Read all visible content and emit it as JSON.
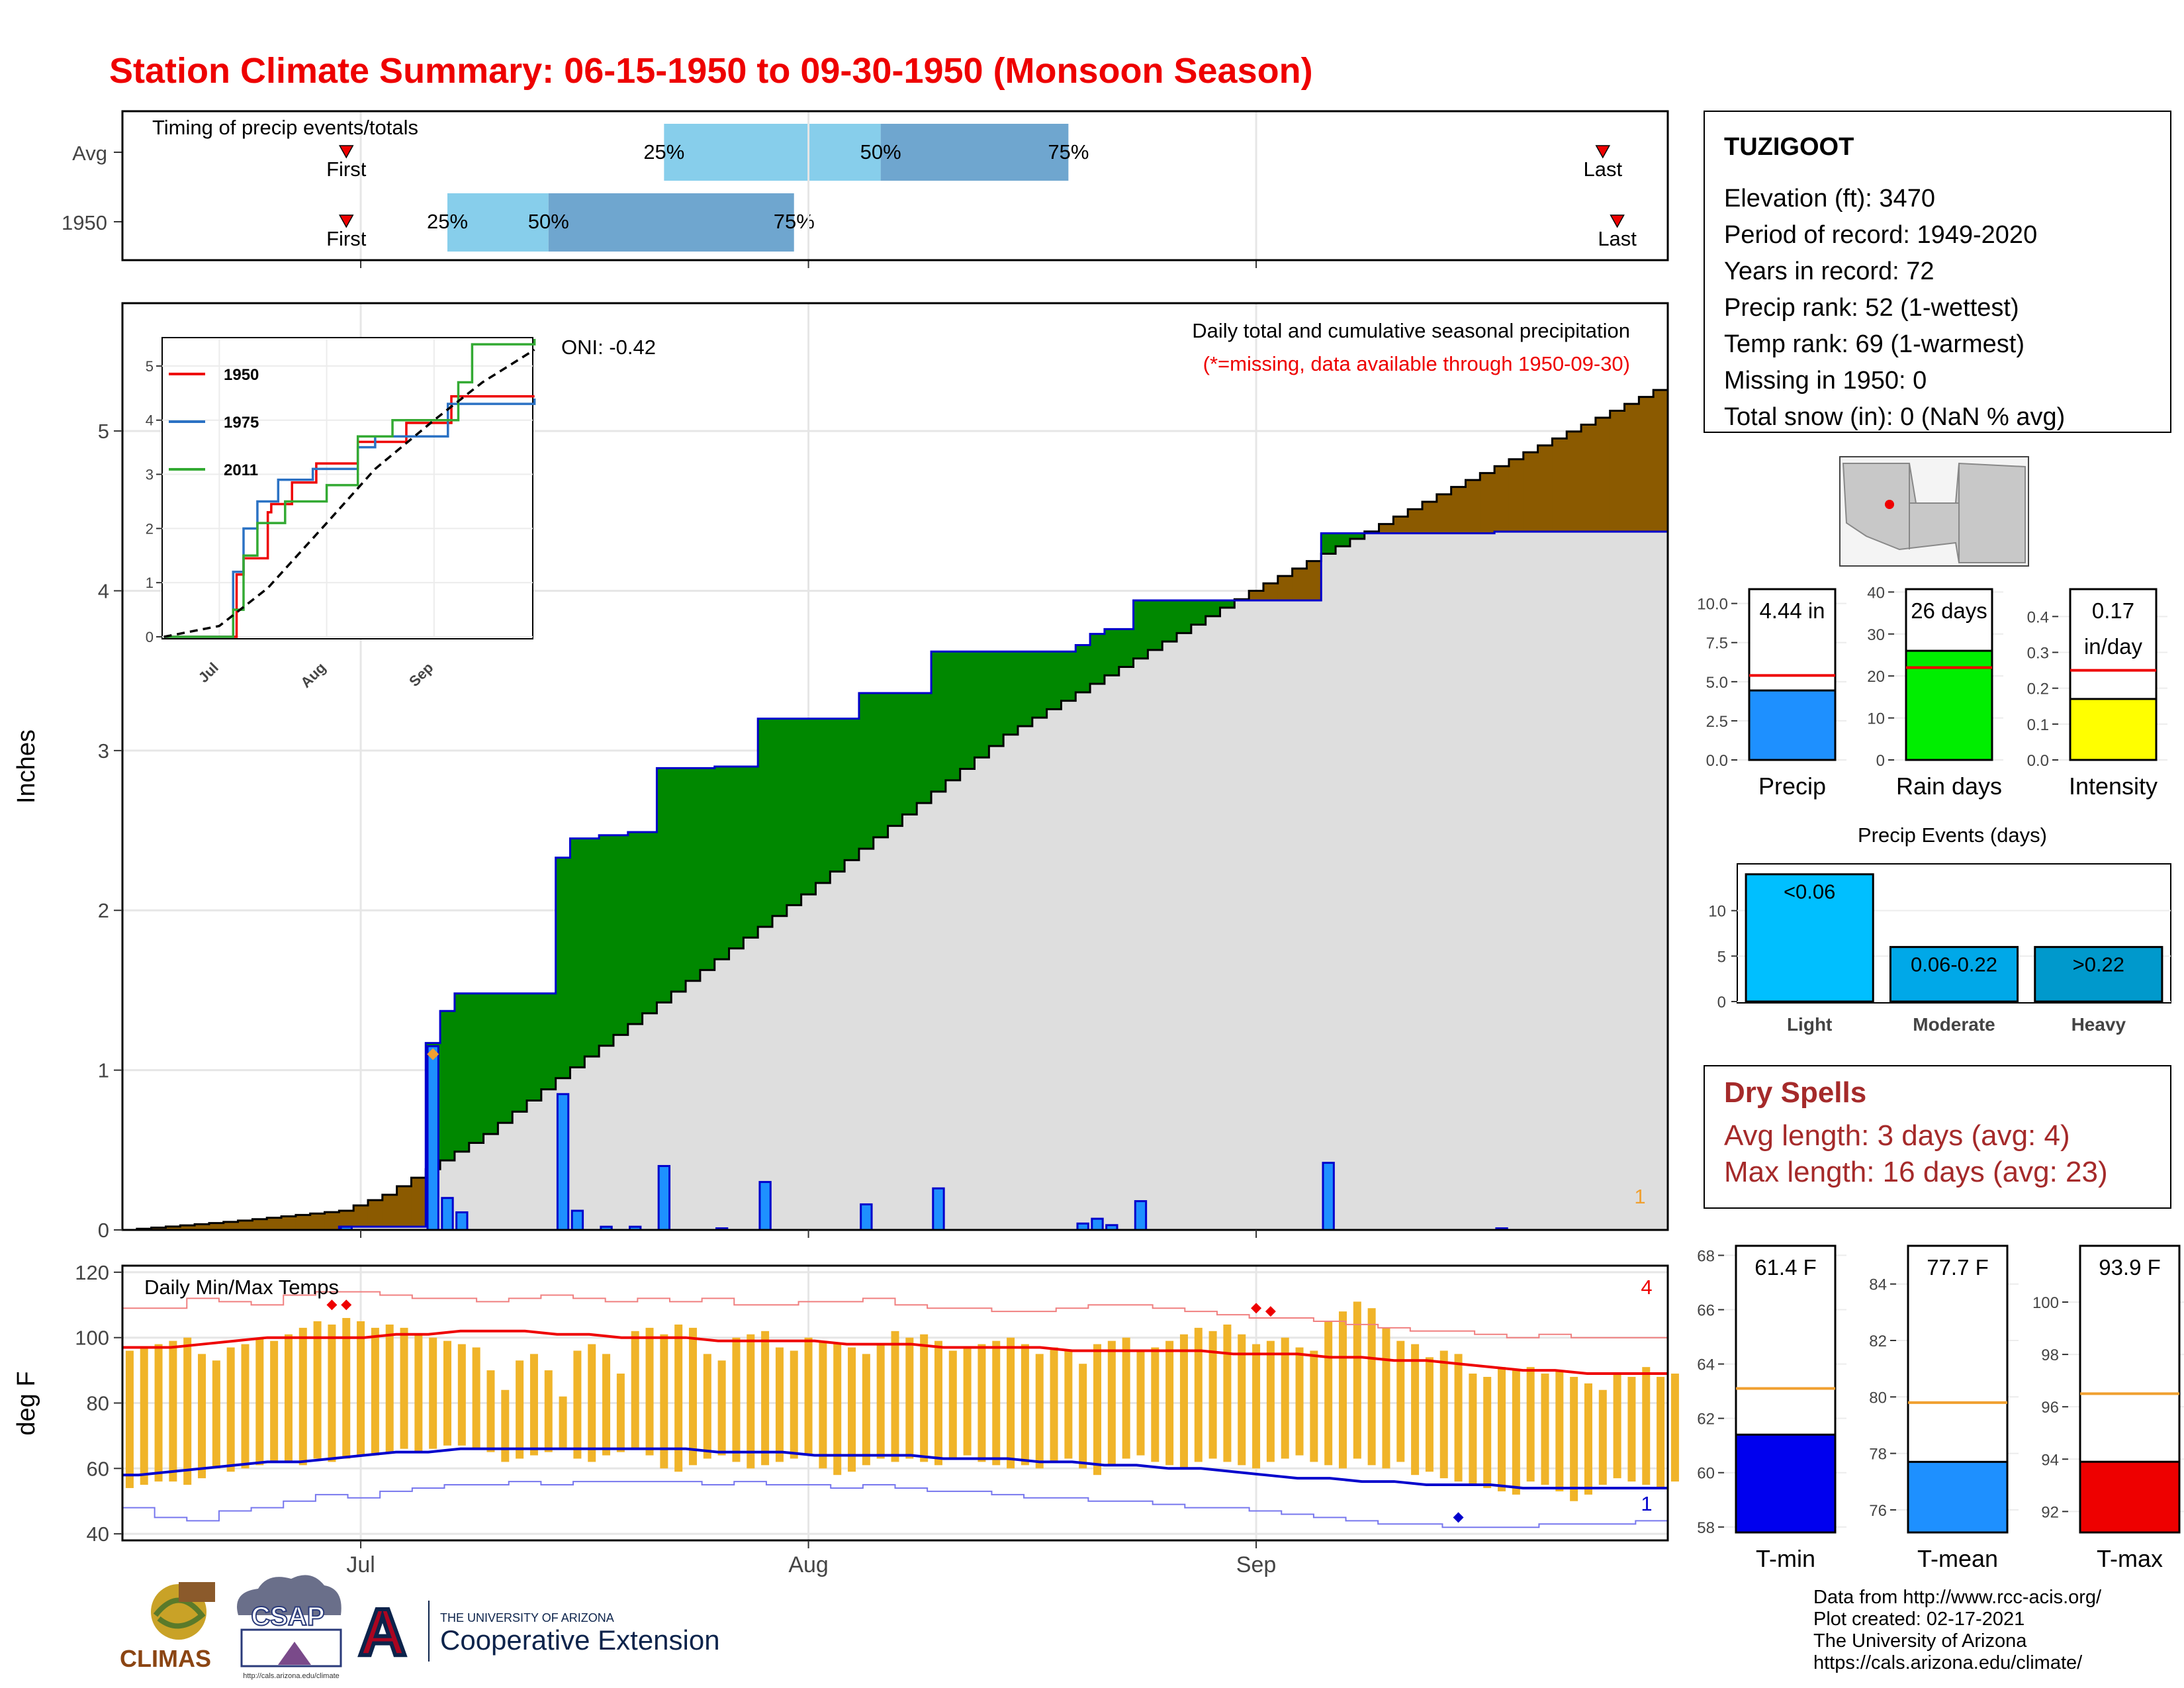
{
  "title": "Station Climate Summary: 06-15-1950 to 09-30-1950 (Monsoon Season)",
  "timing_panel": {
    "heading": "Timing of precip events/totals",
    "rows": [
      {
        "label": "Avg",
        "first_label": "First",
        "last_label": "Last",
        "first_date": "1950-06-30",
        "last_date": "1950-09-25",
        "q25_label": "25%",
        "q50_label": "50%",
        "q75_label": "75%",
        "q25_date": "1950-07-22",
        "q50_date": "1950-08-06",
        "q75_date": "1950-08-19"
      },
      {
        "label": "1950",
        "first_label": "First",
        "last_label": "Last",
        "first_date": "1950-06-30",
        "last_date": "1950-09-26",
        "q25_label": "25%",
        "q50_label": "50%",
        "q75_label": "75%",
        "q25_date": "1950-07-07",
        "q50_date": "1950-07-14",
        "q75_date": "1950-07-31"
      }
    ]
  },
  "station": {
    "name": "TUZIGOOT",
    "lines": [
      "Elevation (ft): 3470",
      "Period of record: 1949-2020",
      "Years in record: 72",
      "Precip rank: 52 (1-wettest)",
      "Temp rank: 69 (1-warmest)",
      "Missing in 1950: 0",
      "Total snow (in): 0 (NaN % avg)"
    ]
  },
  "dry_spells": {
    "title": "Dry Spells",
    "avg_line": "Avg length: 3 days (avg: 4)",
    "max_line": "Max length: 16 days (avg: 23)"
  },
  "footer": {
    "lines": [
      "Data from http://www.rcc-acis.org/",
      "Plot created: 02-17-2021",
      "The University of Arizona",
      "https://cals.arizona.edu/climate/"
    ],
    "logos": {
      "climas": "CLIMAS",
      "csap": "CSAP",
      "csap_url": "http://cals.arizona.edu/climate",
      "ua_small": "THE UNIVERSITY OF ARIZONA",
      "ua_big": "Cooperative Extension",
      "ua_letter": "A"
    }
  },
  "colors": {
    "title": "#ee0000",
    "surplus": "#008800",
    "deficit": "#8b5a00",
    "bar": "#1e90ff",
    "tmax": "#ee0000",
    "tmin": "#0000cc",
    "range": "#f0b429",
    "dry": "#a52a2a"
  },
  "chart_data": [
    {
      "id": "precip-main",
      "type": "area",
      "title": "Daily total and cumulative seasonal precipitation",
      "subtitle": "(*=missing, data available through 1950-09-30)",
      "ylabel": "Inches",
      "ylim": [
        0,
        5.8
      ],
      "yticks": [
        0,
        1,
        2,
        3,
        4,
        5
      ],
      "xlim": [
        "1950-06-15",
        "1950-09-30"
      ],
      "xticks": [
        {
          "label": "Jul",
          "date": "1950-07-01"
        },
        {
          "label": "Aug",
          "date": "1950-08-01"
        },
        {
          "label": "Sep",
          "date": "1950-09-01"
        }
      ],
      "oni_label": "ONI: -0.42",
      "corner_label": "1",
      "grid": true,
      "daily_precip": [
        {
          "date": "1950-06-30",
          "value": 0.02
        },
        {
          "date": "1950-07-06",
          "value": 1.15
        },
        {
          "date": "1950-07-07",
          "value": 0.2
        },
        {
          "date": "1950-07-08",
          "value": 0.11
        },
        {
          "date": "1950-07-15",
          "value": 0.85
        },
        {
          "date": "1950-07-16",
          "value": 0.12
        },
        {
          "date": "1950-07-18",
          "value": 0.02
        },
        {
          "date": "1950-07-20",
          "value": 0.02
        },
        {
          "date": "1950-07-22",
          "value": 0.4
        },
        {
          "date": "1950-07-26",
          "value": 0.01
        },
        {
          "date": "1950-07-29",
          "value": 0.3
        },
        {
          "date": "1950-08-05",
          "value": 0.16
        },
        {
          "date": "1950-08-10",
          "value": 0.26
        },
        {
          "date": "1950-08-20",
          "value": 0.04
        },
        {
          "date": "1950-08-21",
          "value": 0.07
        },
        {
          "date": "1950-08-22",
          "value": 0.03
        },
        {
          "date": "1950-08-24",
          "value": 0.18
        },
        {
          "date": "1950-09-06",
          "value": 0.42
        },
        {
          "date": "1950-09-18",
          "value": 0.01
        }
      ],
      "avg_cumulative": [
        {
          "date": "1950-06-15",
          "value": 0
        },
        {
          "date": "1950-06-22",
          "value": 0.05
        },
        {
          "date": "1950-06-30",
          "value": 0.12
        },
        {
          "date": "1950-07-03",
          "value": 0.22
        },
        {
          "date": "1950-07-06",
          "value": 0.38
        },
        {
          "date": "1950-07-10",
          "value": 0.6
        },
        {
          "date": "1950-07-15",
          "value": 0.95
        },
        {
          "date": "1950-08-01",
          "value": 2.1
        },
        {
          "date": "1950-08-15",
          "value": 3.1
        },
        {
          "date": "1950-09-01",
          "value": 4.0
        },
        {
          "date": "1950-09-15",
          "value": 4.65
        },
        {
          "date": "1950-09-30",
          "value": 5.3
        }
      ],
      "missing_marker": {
        "date": "1950-07-06",
        "value": 1.1
      }
    },
    {
      "id": "precip-inset",
      "type": "line",
      "ylim": [
        0,
        5.5
      ],
      "yticks": [
        0,
        1,
        2,
        3,
        4,
        5
      ],
      "xticks": [
        {
          "label": "Jul",
          "date": "1950-07-01"
        },
        {
          "label": "Aug",
          "date": "1950-08-01"
        },
        {
          "label": "Sep",
          "date": "1950-09-01"
        }
      ],
      "series": [
        {
          "name": "1950",
          "color": "#ee0000",
          "points": [
            {
              "date": "1950-06-15",
              "value": 0
            },
            {
              "date": "1950-07-06",
              "value": 1.15
            },
            {
              "date": "1950-07-08",
              "value": 1.45
            },
            {
              "date": "1950-07-15",
              "value": 2.3
            },
            {
              "date": "1950-07-16",
              "value": 2.45
            },
            {
              "date": "1950-07-22",
              "value": 2.85
            },
            {
              "date": "1950-07-29",
              "value": 3.2
            },
            {
              "date": "1950-08-10",
              "value": 3.6
            },
            {
              "date": "1950-08-24",
              "value": 3.95
            },
            {
              "date": "1950-09-06",
              "value": 4.44
            },
            {
              "date": "1950-09-30",
              "value": 4.44
            }
          ]
        },
        {
          "name": "1975",
          "color": "#2b72c4",
          "points": [
            {
              "date": "1950-06-15",
              "value": 0
            },
            {
              "date": "1950-07-05",
              "value": 1.2
            },
            {
              "date": "1950-07-08",
              "value": 2.0
            },
            {
              "date": "1950-07-12",
              "value": 2.5
            },
            {
              "date": "1950-07-18",
              "value": 2.9
            },
            {
              "date": "1950-07-28",
              "value": 3.1
            },
            {
              "date": "1950-08-10",
              "value": 3.5
            },
            {
              "date": "1950-08-15",
              "value": 3.7
            },
            {
              "date": "1950-09-05",
              "value": 4.3
            },
            {
              "date": "1950-09-30",
              "value": 4.4
            }
          ]
        },
        {
          "name": "2011",
          "color": "#33aa33",
          "points": [
            {
              "date": "1950-06-15",
              "value": 0
            },
            {
              "date": "1950-07-05",
              "value": 0.5
            },
            {
              "date": "1950-07-08",
              "value": 1.5
            },
            {
              "date": "1950-07-12",
              "value": 2.1
            },
            {
              "date": "1950-07-20",
              "value": 2.5
            },
            {
              "date": "1950-08-01",
              "value": 2.8
            },
            {
              "date": "1950-08-10",
              "value": 3.7
            },
            {
              "date": "1950-08-20",
              "value": 4.0
            },
            {
              "date": "1950-09-08",
              "value": 4.7
            },
            {
              "date": "1950-09-12",
              "value": 5.4
            },
            {
              "date": "1950-09-30",
              "value": 5.5
            }
          ]
        },
        {
          "name": "",
          "color": "#000000",
          "dash": true,
          "points": [
            {
              "date": "1950-06-15",
              "value": 0
            },
            {
              "date": "1950-07-01",
              "value": 0.2
            },
            {
              "date": "1950-07-15",
              "value": 0.9
            },
            {
              "date": "1950-08-01",
              "value": 2.1
            },
            {
              "date": "1950-08-15",
              "value": 3.1
            },
            {
              "date": "1950-09-01",
              "value": 4.0
            },
            {
              "date": "1950-09-15",
              "value": 4.7
            },
            {
              "date": "1950-09-30",
              "value": 5.3
            }
          ]
        }
      ]
    },
    {
      "id": "temps-daily",
      "type": "bar",
      "title": "Daily Min/Max Temps",
      "ylabel": "deg F",
      "ylim": [
        38,
        122
      ],
      "yticks": [
        40,
        60,
        80,
        100,
        120
      ],
      "xticks": [
        {
          "label": "Jul",
          "date": "1950-07-01"
        },
        {
          "label": "Aug",
          "date": "1950-08-01"
        },
        {
          "label": "Sep",
          "date": "1950-09-01"
        }
      ],
      "corner_label_top": "4",
      "corner_label_bottom": "1",
      "grid": true,
      "tmax_daily": [
        96,
        97,
        98,
        99,
        100,
        95,
        93,
        97,
        98,
        100,
        99,
        101,
        103,
        105,
        104,
        106,
        105,
        103,
        104,
        103,
        101,
        100,
        99,
        98,
        97,
        90,
        84,
        93,
        95,
        90,
        82,
        96,
        98,
        95,
        89,
        102,
        103,
        101,
        104,
        103,
        95,
        93,
        100,
        101,
        102,
        97,
        96,
        100,
        99,
        98,
        97,
        95,
        98,
        102,
        100,
        101,
        99,
        96,
        97,
        98,
        99,
        100,
        98,
        95,
        97,
        96,
        92,
        98,
        99,
        100,
        96,
        97,
        99,
        101,
        103,
        102,
        104,
        101,
        98,
        99,
        100,
        97,
        96,
        105,
        108,
        111,
        109,
        103,
        99,
        98,
        94,
        96,
        95,
        89,
        88,
        91,
        90,
        91,
        89,
        90,
        88,
        86,
        84,
        89,
        88,
        91,
        88,
        89
      ],
      "tmin_daily": [
        54,
        55,
        56,
        56,
        55,
        57,
        60,
        59,
        60,
        61,
        62,
        62,
        61,
        63,
        62,
        63,
        64,
        64,
        65,
        66,
        65,
        66,
        67,
        67,
        66,
        65,
        62,
        63,
        64,
        65,
        66,
        63,
        62,
        64,
        65,
        66,
        64,
        60,
        59,
        61,
        63,
        64,
        62,
        60,
        61,
        62,
        63,
        64,
        60,
        58,
        59,
        61,
        63,
        62,
        63,
        62,
        61,
        63,
        64,
        62,
        61,
        60,
        61,
        60,
        62,
        63,
        60,
        58,
        61,
        63,
        64,
        62,
        61,
        60,
        62,
        63,
        62,
        61,
        60,
        62,
        63,
        64,
        62,
        61,
        60,
        63,
        61,
        60,
        62,
        58,
        59,
        57,
        56,
        55,
        54,
        53,
        52,
        56,
        55,
        53,
        50,
        52,
        55,
        57,
        56,
        55,
        54,
        56
      ],
      "avg_tmax": [
        97,
        97,
        98,
        99,
        100,
        100,
        100,
        100,
        101,
        101,
        102,
        102,
        102,
        101,
        101,
        100,
        100,
        100,
        99,
        99,
        99,
        99,
        98,
        98,
        98,
        97,
        97,
        97,
        97,
        96,
        96,
        96,
        96,
        96,
        95,
        95,
        95,
        94,
        94,
        93,
        93,
        92,
        91,
        90,
        90,
        89,
        89,
        89
      ],
      "avg_tmin": [
        58,
        59,
        60,
        61,
        62,
        62,
        63,
        64,
        65,
        65,
        66,
        66,
        66,
        66,
        66,
        66,
        66,
        66,
        65,
        65,
        65,
        64,
        64,
        64,
        64,
        63,
        63,
        63,
        62,
        62,
        61,
        61,
        60,
        60,
        59,
        58,
        57,
        57,
        56,
        56,
        55,
        55,
        55,
        54,
        54,
        54,
        54,
        54
      ],
      "record_max": [
        109,
        109,
        112,
        111,
        110,
        113,
        114,
        114,
        113,
        112,
        112,
        111,
        112,
        113,
        112,
        111,
        112,
        111,
        112,
        110,
        110,
        111,
        111,
        112,
        110,
        109,
        109,
        108,
        108,
        109,
        110,
        110,
        109,
        108,
        107,
        106,
        106,
        105,
        104,
        103,
        102,
        102,
        101,
        100,
        101,
        100,
        100,
        100
      ],
      "record_min": [
        48,
        45,
        44,
        47,
        48,
        50,
        52,
        51,
        53,
        54,
        55,
        55,
        56,
        55,
        56,
        56,
        56,
        56,
        55,
        56,
        55,
        55,
        54,
        55,
        54,
        53,
        53,
        52,
        51,
        51,
        50,
        50,
        49,
        48,
        48,
        47,
        46,
        45,
        44,
        43,
        43,
        42,
        42,
        42,
        43,
        43,
        43,
        44
      ],
      "record_markers": [
        {
          "date": "1950-06-29",
          "value": 110,
          "color": "#ee0000"
        },
        {
          "date": "1950-06-30",
          "value": 110,
          "color": "#ee0000"
        },
        {
          "date": "1950-09-01",
          "value": 109,
          "color": "#ee0000"
        },
        {
          "date": "1950-09-02",
          "value": 108,
          "color": "#ee0000"
        },
        {
          "date": "1950-09-15",
          "value": 45,
          "color": "#0000cc"
        }
      ]
    },
    {
      "id": "summary-precip",
      "type": "bar",
      "categories": [
        "Precip",
        "Rain days",
        "Intensity"
      ],
      "panels": [
        {
          "label": "Precip",
          "value": 4.44,
          "avg": 5.4,
          "ylim": [
            0,
            11
          ],
          "yticks": [
            "0.0",
            "2.5",
            "5.0",
            "7.5",
            "10.0"
          ],
          "tickvals": [
            0,
            2.5,
            5,
            7.5,
            10
          ],
          "value_label": "4.44 in",
          "color": "#1e90ff"
        },
        {
          "label": "Rain days",
          "value": 26,
          "avg": 22,
          "ylim": [
            0,
            41
          ],
          "yticks": [
            "0",
            "10",
            "20",
            "30",
            "40"
          ],
          "tickvals": [
            0,
            10,
            20,
            30,
            40
          ],
          "value_label": "26 days",
          "color": "#00ee00"
        },
        {
          "label": "Intensity",
          "value": 0.17,
          "avg": 0.25,
          "ylim": [
            0,
            0.48
          ],
          "yticks": [
            "0.0",
            "0.1",
            "0.2",
            "0.3",
            "0.4"
          ],
          "tickvals": [
            0,
            0.1,
            0.2,
            0.3,
            0.4
          ],
          "value_label": "0.17",
          "value_label2": "in/day",
          "color": "#ffff00"
        }
      ]
    },
    {
      "id": "precip-events",
      "type": "bar",
      "title": "Precip Events (days)",
      "categories": [
        "Light",
        "Moderate",
        "Heavy"
      ],
      "values": [
        14,
        6,
        6
      ],
      "bar_labels": [
        "<0.06",
        "0.06-0.22",
        ">0.22"
      ],
      "colors": [
        "#00bfff",
        "#00a8e8",
        "#0099cc"
      ],
      "ylim": [
        0,
        15
      ],
      "yticks": [
        0,
        5,
        10
      ]
    },
    {
      "id": "summary-temps",
      "type": "bar",
      "categories": [
        "T-min",
        "T-mean",
        "T-max"
      ],
      "panels": [
        {
          "label": "T-min",
          "value": 61.4,
          "avg": 63.1,
          "ylim": [
            57.8,
            68.4
          ],
          "tickvals": [
            58,
            60,
            62,
            64,
            66,
            68
          ],
          "value_label": "61.4 F",
          "color": "#0000ee"
        },
        {
          "label": "T-mean",
          "value": 77.7,
          "avg": 79.8,
          "ylim": [
            75.2,
            85.4
          ],
          "tickvals": [
            76,
            78,
            80,
            82,
            84
          ],
          "value_label": "77.7 F",
          "color": "#1e90ff"
        },
        {
          "label": "T-max",
          "value": 93.9,
          "avg": 96.5,
          "ylim": [
            91.2,
            102.2
          ],
          "tickvals": [
            92,
            94,
            96,
            98,
            100
          ],
          "value_label": "93.9 F",
          "color": "#ee0000"
        }
      ]
    }
  ]
}
